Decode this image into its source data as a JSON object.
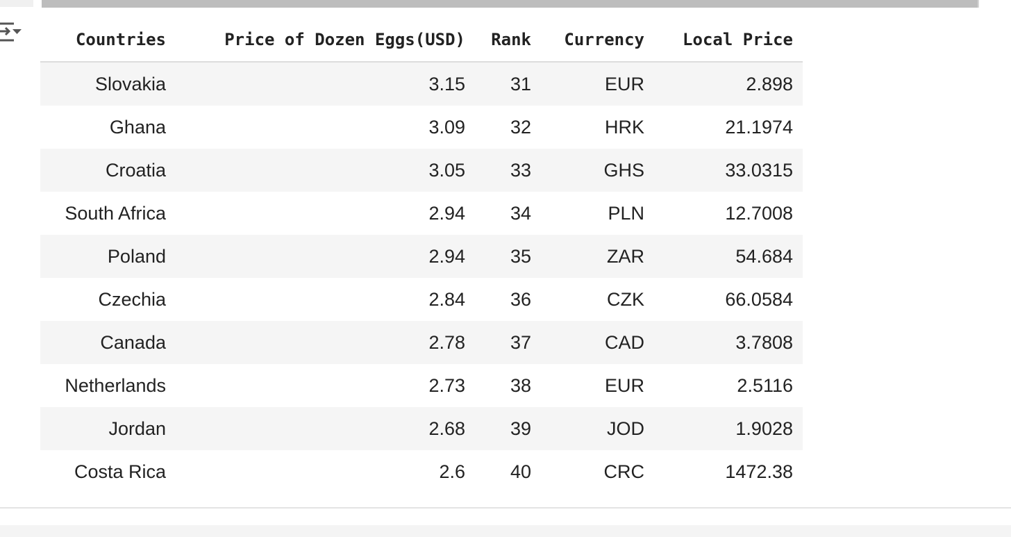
{
  "output": {
    "icon": "output-toggle-icon"
  },
  "table": {
    "columns": [
      "Countries",
      "Price of Dozen Eggs(USD)",
      "Rank",
      "Currency",
      "Local Price"
    ],
    "rows": [
      [
        "Slovakia",
        "3.15",
        "31",
        "EUR",
        "2.898"
      ],
      [
        "Ghana",
        "3.09",
        "32",
        "HRK",
        "21.1974"
      ],
      [
        "Croatia",
        "3.05",
        "33",
        "GHS",
        "33.0315"
      ],
      [
        "South Africa",
        "2.94",
        "34",
        "PLN",
        "12.7008"
      ],
      [
        "Poland",
        "2.94",
        "35",
        "ZAR",
        "54.684"
      ],
      [
        "Czechia",
        "2.84",
        "36",
        "CZK",
        "66.0584"
      ],
      [
        "Canada",
        "2.78",
        "37",
        "CAD",
        "3.7808"
      ],
      [
        "Netherlands",
        "2.73",
        "38",
        "EUR",
        "2.5116"
      ],
      [
        "Jordan",
        "2.68",
        "39",
        "JOD",
        "1.9028"
      ],
      [
        "Costa Rica",
        "2.6",
        "40",
        "CRC",
        "1472.38"
      ]
    ]
  },
  "colors": {
    "text": "#222222",
    "stripe": "#f5f5f5",
    "scrollbar": "#bdbdbd",
    "icon": "#555555"
  }
}
